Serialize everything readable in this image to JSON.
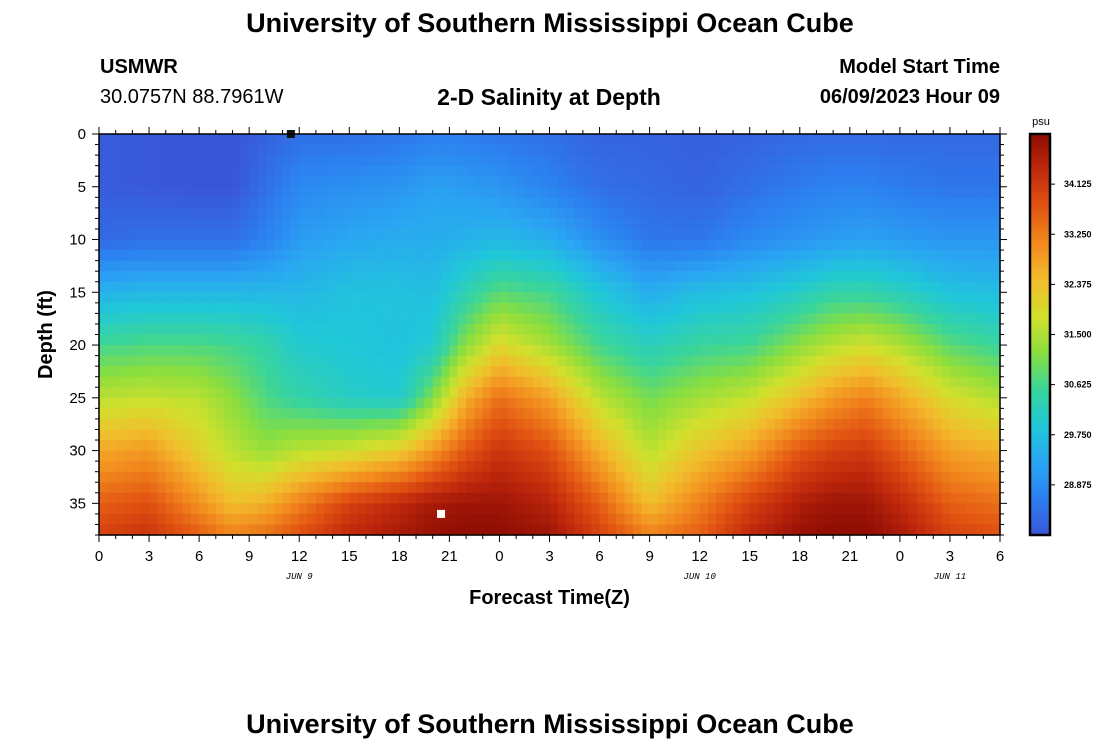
{
  "header": {
    "title": "University of Southern Mississippi Ocean Cube",
    "station_name": "USMWR",
    "station_coords": "30.0757N  88.7961W",
    "plot_title": "2-D Salinity at Depth",
    "model_label": "Model Start Time",
    "model_date": "06/09/2023 Hour 09"
  },
  "footer": {
    "title": "University of Southern Mississippi Ocean Cube"
  },
  "chart_data": {
    "type": "heatmap",
    "title": "2-D Salinity at Depth",
    "xlabel": "Forecast Time(Z)",
    "ylabel": "Depth (ft)",
    "x_unit": "hours from Jun 9 00Z",
    "xlim": [
      0,
      54
    ],
    "ylim": [
      0,
      38
    ],
    "y_inverted": true,
    "x_ticks": [
      0,
      3,
      6,
      9,
      12,
      15,
      18,
      21,
      24,
      27,
      30,
      33,
      36,
      39,
      42,
      45,
      48,
      51,
      54
    ],
    "x_tick_labels": [
      "0",
      "3",
      "6",
      "9",
      "12",
      "15",
      "18",
      "21",
      "0",
      "3",
      "6",
      "9",
      "12",
      "15",
      "18",
      "21",
      "0",
      "3",
      "6"
    ],
    "y_ticks": [
      0,
      5,
      10,
      15,
      20,
      25,
      30,
      35
    ],
    "date_labels": [
      {
        "x": 12,
        "label": "JUN 9"
      },
      {
        "x": 36,
        "label": "JUN 10"
      },
      {
        "x": 51,
        "label": "JUN 11"
      }
    ],
    "colorbar": {
      "unit": "psu",
      "min": 28.0,
      "max": 35.0,
      "ticks": [
        28.875,
        29.75,
        30.625,
        31.5,
        32.375,
        33.25,
        34.125
      ],
      "tick_labels": [
        "28.875",
        "29.750",
        "30.625",
        "31.500",
        "32.375",
        "33.250",
        "34.125"
      ],
      "colors": [
        "#3a56d8",
        "#2c7ff0",
        "#2aa6f2",
        "#20c8d8",
        "#3ad59a",
        "#8bde3e",
        "#d2e02c",
        "#f2bc2c",
        "#f28a1e",
        "#e25412",
        "#c22a0c",
        "#8e0c04"
      ]
    },
    "profile_time": [
      0,
      3,
      6,
      8,
      10,
      12,
      15,
      18,
      20,
      22,
      24,
      27,
      30,
      33,
      36,
      39,
      42,
      44,
      46,
      48,
      51,
      54
    ],
    "profile_depth": [
      0,
      5,
      10,
      15,
      20,
      25,
      30,
      35,
      38
    ],
    "salinity_psu": [
      [
        28.1,
        28.1,
        28.3,
        29.5,
        30.6,
        31.6,
        32.7,
        33.6,
        34.0
      ],
      [
        28.05,
        28.05,
        28.4,
        29.6,
        30.7,
        31.7,
        32.9,
        33.8,
        34.2
      ],
      [
        28.0,
        28.0,
        28.4,
        29.6,
        30.7,
        31.6,
        32.1,
        33.0,
        33.6
      ],
      [
        28.0,
        28.0,
        28.4,
        29.6,
        30.6,
        31.2,
        31.6,
        32.4,
        33.2
      ],
      [
        28.2,
        28.4,
        28.7,
        29.6,
        30.4,
        30.7,
        31.3,
        32.6,
        33.4
      ],
      [
        28.4,
        28.8,
        29.1,
        29.6,
        30.0,
        30.4,
        31.6,
        33.2,
        33.8
      ],
      [
        28.4,
        28.9,
        29.3,
        29.8,
        29.9,
        30.1,
        31.8,
        34.0,
        34.4
      ],
      [
        28.5,
        29.0,
        29.4,
        29.8,
        29.8,
        30.0,
        32.2,
        34.4,
        34.7
      ],
      [
        28.6,
        29.2,
        29.4,
        29.7,
        30.0,
        31.1,
        32.9,
        34.7,
        34.9
      ],
      [
        28.6,
        29.1,
        29.5,
        30.3,
        31.2,
        32.6,
        33.7,
        34.8,
        35.0
      ],
      [
        28.5,
        29.0,
        29.6,
        30.8,
        32.0,
        33.4,
        34.2,
        34.8,
        35.0
      ],
      [
        28.4,
        28.7,
        29.4,
        30.6,
        31.4,
        32.8,
        33.8,
        34.5,
        34.8
      ],
      [
        28.2,
        28.4,
        28.9,
        29.9,
        30.6,
        31.6,
        32.6,
        33.6,
        34.0
      ],
      [
        28.2,
        28.3,
        28.5,
        29.4,
        30.2,
        31.0,
        31.6,
        32.4,
        33.2
      ],
      [
        28.15,
        28.2,
        28.5,
        29.7,
        30.5,
        31.4,
        32.3,
        33.2,
        33.6
      ],
      [
        28.2,
        28.4,
        28.8,
        29.8,
        30.6,
        31.7,
        32.8,
        34.0,
        34.4
      ],
      [
        28.3,
        28.6,
        29.0,
        30.1,
        31.2,
        32.4,
        33.7,
        34.6,
        34.9
      ],
      [
        28.3,
        28.7,
        29.1,
        30.4,
        31.6,
        32.9,
        34.0,
        34.8,
        35.0
      ],
      [
        28.3,
        28.7,
        29.2,
        30.4,
        31.8,
        33.2,
        34.1,
        34.8,
        35.0
      ],
      [
        28.3,
        28.6,
        29.1,
        30.2,
        31.5,
        32.7,
        33.6,
        34.4,
        34.7
      ],
      [
        28.3,
        28.5,
        29.0,
        29.8,
        30.8,
        31.9,
        32.8,
        33.6,
        34.0
      ],
      [
        28.3,
        28.5,
        29.0,
        29.7,
        30.5,
        31.5,
        32.6,
        33.4,
        33.8
      ]
    ],
    "markers": [
      {
        "x": 11.5,
        "y": 0,
        "color": "#111111"
      },
      {
        "x": 20.5,
        "y": 36,
        "color": "#ffffff"
      }
    ]
  }
}
